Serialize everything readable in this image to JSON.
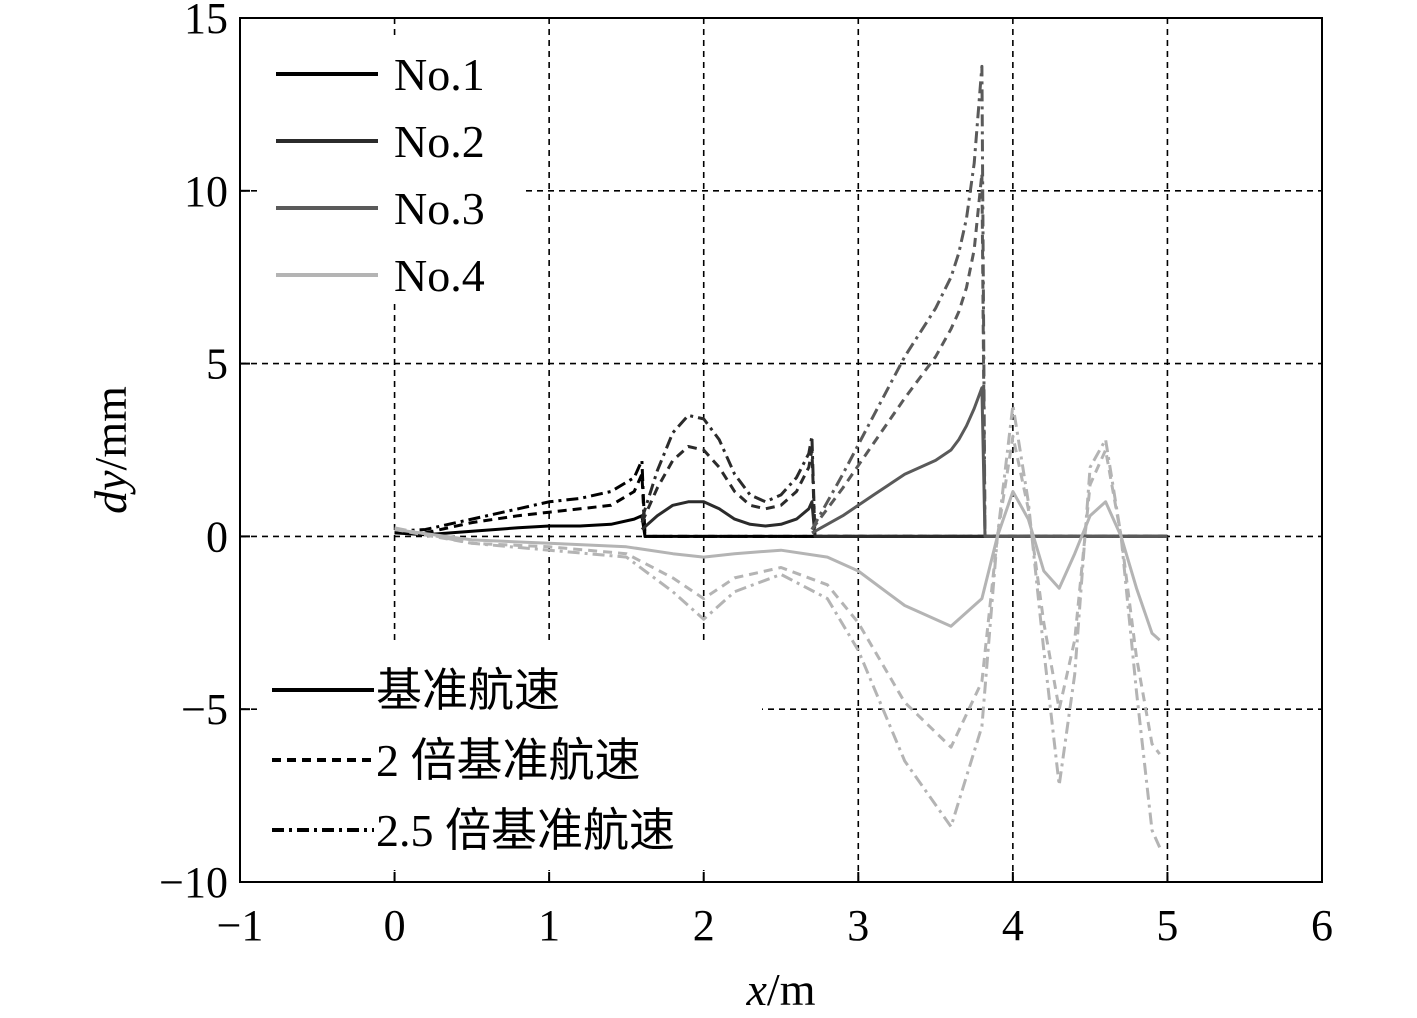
{
  "chart_data": {
    "type": "line",
    "xlabel": {
      "var": "x",
      "unit": "/m"
    },
    "ylabel": {
      "var": "dy",
      "unit": "/mm"
    },
    "xlim": [
      -1,
      6
    ],
    "ylim": [
      -10,
      15
    ],
    "xticks": [
      -1,
      0,
      1,
      2,
      3,
      4,
      5,
      6
    ],
    "yticks": [
      -10,
      -5,
      0,
      5,
      10,
      15
    ],
    "xtick_labels": [
      "−1",
      "0",
      "1",
      "2",
      "3",
      "4",
      "5",
      "6"
    ],
    "ytick_labels": [
      "−10",
      "−5",
      "0",
      "5",
      "10",
      "15"
    ],
    "grid": true,
    "legend_ships": [
      {
        "label": "No.1",
        "color": "#000000"
      },
      {
        "label": "No.2",
        "color": "#2b2b2b"
      },
      {
        "label": "No.3",
        "color": "#5a5a5a"
      },
      {
        "label": "No.4",
        "color": "#b4b4b4"
      }
    ],
    "legend_speeds": [
      {
        "label": "基准航速",
        "dash": "solid"
      },
      {
        "label": "2 倍基准航速",
        "dash": "dashed"
      },
      {
        "label": "2.5 倍基准航速",
        "dash": "dashdot"
      }
    ],
    "series": [
      {
        "ship": "No.1",
        "speed": "基准航速",
        "x": [
          0,
          0.2,
          0.5,
          0.8,
          1.0,
          1.2,
          1.4,
          1.55,
          1.6,
          1.62,
          5.0
        ],
        "y": [
          0.1,
          0.05,
          0.15,
          0.25,
          0.3,
          0.3,
          0.35,
          0.5,
          0.6,
          0,
          0
        ]
      },
      {
        "ship": "No.1",
        "speed": "2 倍基准航速",
        "x": [
          0,
          0.2,
          0.5,
          0.8,
          1.0,
          1.2,
          1.4,
          1.55,
          1.6,
          1.62,
          5.0
        ],
        "y": [
          0.1,
          0.1,
          0.4,
          0.6,
          0.7,
          0.8,
          0.9,
          1.3,
          1.8,
          0,
          0
        ]
      },
      {
        "ship": "No.1",
        "speed": "2.5 倍基准航速",
        "x": [
          0,
          0.2,
          0.5,
          0.8,
          1.0,
          1.2,
          1.4,
          1.55,
          1.6,
          1.62,
          5.0
        ],
        "y": [
          0.15,
          0.2,
          0.5,
          0.8,
          1.0,
          1.1,
          1.3,
          1.7,
          2.2,
          0,
          0
        ]
      },
      {
        "ship": "No.2",
        "speed": "基准航速",
        "x": [
          1.6,
          1.7,
          1.8,
          1.9,
          2.0,
          2.1,
          2.2,
          2.3,
          2.4,
          2.5,
          2.6,
          2.68,
          2.7,
          2.72,
          5.0
        ],
        "y": [
          0.2,
          0.6,
          0.9,
          1.0,
          1.0,
          0.8,
          0.5,
          0.35,
          0.3,
          0.35,
          0.5,
          0.8,
          1.0,
          0,
          0
        ]
      },
      {
        "ship": "No.2",
        "speed": "2 倍基准航速",
        "x": [
          1.6,
          1.7,
          1.8,
          1.9,
          2.0,
          2.1,
          2.2,
          2.3,
          2.4,
          2.5,
          2.6,
          2.68,
          2.7,
          2.72,
          5.0
        ],
        "y": [
          0.4,
          1.4,
          2.2,
          2.6,
          2.5,
          2.0,
          1.3,
          0.9,
          0.8,
          0.9,
          1.3,
          2.0,
          2.5,
          0,
          0
        ]
      },
      {
        "ship": "No.2",
        "speed": "2.5 倍基准航速",
        "x": [
          1.6,
          1.7,
          1.8,
          1.9,
          2.0,
          2.1,
          2.2,
          2.3,
          2.4,
          2.5,
          2.6,
          2.68,
          2.7,
          2.72,
          5.0
        ],
        "y": [
          0.5,
          1.9,
          3.0,
          3.5,
          3.4,
          2.8,
          1.8,
          1.2,
          1.0,
          1.2,
          1.7,
          2.4,
          2.9,
          0,
          0
        ]
      },
      {
        "ship": "No.3",
        "speed": "基准航速",
        "x": [
          2.7,
          2.9,
          3.1,
          3.3,
          3.5,
          3.6,
          3.65,
          3.7,
          3.75,
          3.8,
          3.82,
          5.0
        ],
        "y": [
          0.1,
          0.6,
          1.2,
          1.8,
          2.2,
          2.5,
          2.8,
          3.2,
          3.7,
          4.3,
          0,
          0
        ]
      },
      {
        "ship": "No.3",
        "speed": "2 倍基准航速",
        "x": [
          2.7,
          2.9,
          3.1,
          3.3,
          3.5,
          3.6,
          3.65,
          3.7,
          3.75,
          3.8,
          3.82,
          5.0
        ],
        "y": [
          0.2,
          1.4,
          2.7,
          4.0,
          5.2,
          6.0,
          6.5,
          7.2,
          8.3,
          10.5,
          0,
          0
        ]
      },
      {
        "ship": "No.3",
        "speed": "2.5 倍基准航速",
        "x": [
          2.7,
          2.9,
          3.1,
          3.3,
          3.5,
          3.6,
          3.65,
          3.7,
          3.75,
          3.8,
          3.82,
          5.0
        ],
        "y": [
          0.2,
          1.8,
          3.5,
          5.2,
          6.6,
          7.5,
          8.2,
          9.2,
          10.8,
          13.6,
          0,
          0
        ]
      },
      {
        "ship": "No.4",
        "speed": "基准航速",
        "x": [
          0,
          0.5,
          1.0,
          1.5,
          1.8,
          2.0,
          2.2,
          2.5,
          2.8,
          3.0,
          3.3,
          3.6,
          3.8,
          3.9,
          4.0,
          4.1,
          4.2,
          4.3,
          4.4,
          4.5,
          4.6,
          4.7,
          4.8,
          4.9,
          4.95
        ],
        "y": [
          0.2,
          -0.1,
          -0.2,
          -0.3,
          -0.5,
          -0.6,
          -0.5,
          -0.4,
          -0.6,
          -1.0,
          -2.0,
          -2.6,
          -1.8,
          0.0,
          1.3,
          0.5,
          -1.0,
          -1.5,
          -0.5,
          0.6,
          1.0,
          0.0,
          -1.5,
          -2.8,
          -3.0
        ]
      },
      {
        "ship": "No.4",
        "speed": "2 倍基准航速",
        "x": [
          0,
          0.5,
          1.0,
          1.5,
          1.8,
          2.0,
          2.2,
          2.5,
          2.8,
          3.0,
          3.3,
          3.6,
          3.8,
          3.9,
          4.0,
          4.1,
          4.2,
          4.3,
          4.4,
          4.5,
          4.6,
          4.7,
          4.8,
          4.9,
          4.95
        ],
        "y": [
          0.2,
          -0.2,
          -0.3,
          -0.5,
          -1.2,
          -1.8,
          -1.2,
          -0.9,
          -1.4,
          -2.5,
          -4.8,
          -6.1,
          -4.2,
          0.0,
          2.9,
          0.8,
          -2.5,
          -5.0,
          -3.0,
          1.5,
          2.5,
          0.0,
          -3.5,
          -6.0,
          -6.3
        ]
      },
      {
        "ship": "No.4",
        "speed": "2.5 倍基准航速",
        "x": [
          0,
          0.5,
          1.0,
          1.5,
          1.8,
          2.0,
          2.2,
          2.5,
          2.8,
          3.0,
          3.3,
          3.6,
          3.8,
          3.9,
          4.0,
          4.1,
          4.2,
          4.3,
          4.4,
          4.5,
          4.6,
          4.7,
          4.8,
          4.9,
          4.95
        ],
        "y": [
          0.25,
          -0.2,
          -0.4,
          -0.6,
          -1.6,
          -2.4,
          -1.6,
          -1.1,
          -1.8,
          -3.3,
          -6.5,
          -8.4,
          -5.5,
          0.0,
          3.8,
          1.0,
          -3.3,
          -7.2,
          -4.0,
          2.0,
          2.8,
          0.0,
          -4.5,
          -8.5,
          -9.0
        ]
      }
    ]
  }
}
